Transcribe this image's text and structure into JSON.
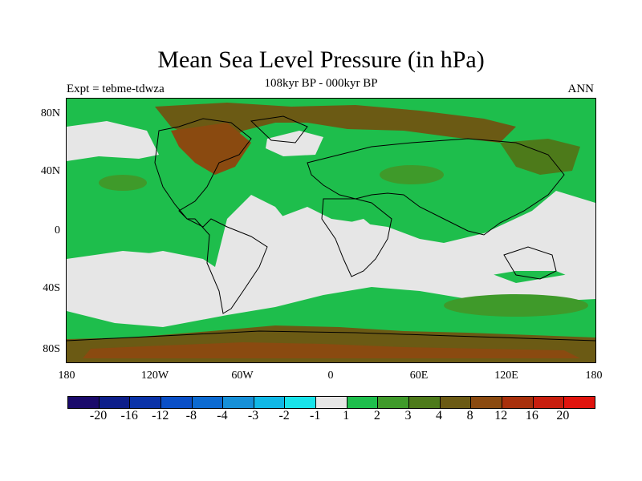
{
  "title": "Mean Sea Level Pressure (in hPa)",
  "subtitle": "108kyr BP - 000kyr BP",
  "left_label": "Expt = tebme-tdwza",
  "right_label": "ANN",
  "y_axis_labels": [
    "80N",
    "40N",
    "0",
    "40S",
    "80S"
  ],
  "x_axis_labels": [
    "180",
    "120W",
    "60W",
    "0",
    "60E",
    "120E",
    "180"
  ],
  "legend": {
    "labels": [
      "-20",
      "-16",
      "-12",
      "-8",
      "-4",
      "-3",
      "-2",
      "-1",
      "1",
      "2",
      "3",
      "4",
      "8",
      "12",
      "16",
      "20"
    ],
    "colors": [
      "#1a0a6b",
      "#0d1e8a",
      "#0a32a8",
      "#0a4fc7",
      "#0c6ad1",
      "#1690d8",
      "#11b8e6",
      "#19e3ea",
      "#e6e6e6",
      "#1ebe4c",
      "#3f9a2a",
      "#4d7a1a",
      "#6b5a14",
      "#8a4a10",
      "#a8300c",
      "#c81e0e",
      "#e0140e"
    ]
  },
  "colors": {
    "neutral": "#e6e6e6",
    "light_green": "#1ebe4c",
    "mid_green": "#3f9a2a",
    "olive": "#4d7a1a",
    "brown": "#6b5a14",
    "dark_brown": "#8a4a10"
  }
}
